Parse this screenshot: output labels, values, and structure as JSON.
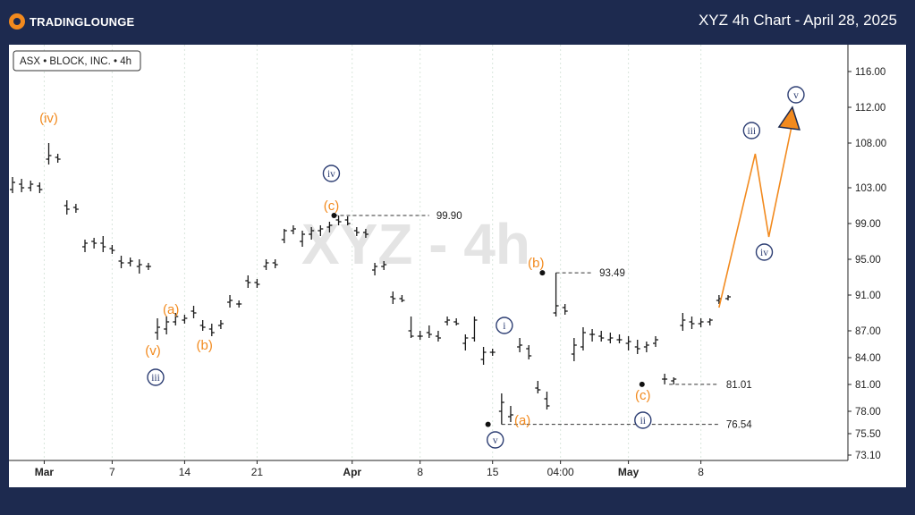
{
  "header": {
    "logo_text": "TRADINGLOUNGE",
    "chart_title": "XYZ 4h Chart - April 28, 2025"
  },
  "symbol_label": "ASX • BLOCK, INC. • 4h",
  "watermark": "XYZ - 4h",
  "colors": {
    "background": "#1d2a4f",
    "orange": "#f28a1e",
    "navy": "#2d3e73",
    "bars": "#1a1a1a",
    "grid": "#d9e6dc"
  },
  "chart_data": {
    "type": "ohlc",
    "title": "XYZ 4h Chart - April 28, 2025",
    "y_axis": {
      "ticks": [
        116.0,
        112.0,
        108.0,
        103.0,
        99.0,
        95.0,
        91.0,
        87.0,
        84.0,
        81.0,
        78.0,
        75.5,
        73.1
      ],
      "tick_labels": [
        "116.00",
        "112.00",
        "108.00",
        "103.00",
        "99.00",
        "95.00",
        "91.00",
        "87.00",
        "84.00",
        "81.00",
        "78.00",
        "75.50",
        "73.10"
      ],
      "range": [
        72.5,
        119
      ]
    },
    "x_axis": {
      "tick_labels": [
        "Mar",
        "7",
        "14",
        "21",
        "Apr",
        "8",
        "15",
        "04:00",
        "May",
        "8"
      ],
      "bold_labels": [
        "Mar",
        "Apr",
        "May"
      ],
      "tick_bars": [
        3.5,
        11,
        19,
        27,
        37.5,
        45,
        53,
        60.5,
        68,
        76
      ],
      "range": [
        0,
        79
      ]
    },
    "ohlc": [
      [
        102.8,
        104.2,
        102.4,
        103.6
      ],
      [
        103.4,
        104.0,
        102.5,
        103.0
      ],
      [
        103.0,
        103.8,
        102.6,
        103.4
      ],
      [
        103.2,
        103.6,
        102.4,
        102.8
      ],
      [
        106.2,
        108.0,
        105.6,
        106.6
      ],
      [
        106.4,
        106.8,
        105.8,
        106.2
      ],
      [
        101.0,
        101.6,
        100.0,
        100.6
      ],
      [
        100.8,
        101.2,
        100.2,
        100.6
      ],
      [
        96.4,
        97.2,
        95.8,
        96.8
      ],
      [
        97.0,
        97.4,
        96.2,
        96.8
      ],
      [
        96.8,
        97.6,
        95.8,
        96.4
      ],
      [
        96.2,
        96.6,
        95.6,
        96.0
      ],
      [
        94.8,
        95.4,
        94.0,
        94.6
      ],
      [
        94.6,
        95.2,
        94.2,
        94.8
      ],
      [
        94.2,
        95.0,
        93.4,
        94.4
      ],
      [
        94.2,
        94.6,
        93.8,
        94.2
      ],
      [
        86.8,
        88.4,
        86.0,
        87.4
      ],
      [
        87.2,
        88.6,
        86.6,
        88.0
      ],
      [
        88.0,
        89.0,
        87.6,
        88.6
      ],
      [
        88.2,
        88.8,
        87.8,
        88.4
      ],
      [
        89.2,
        89.8,
        88.4,
        89.0
      ],
      [
        87.6,
        88.2,
        87.0,
        87.4
      ],
      [
        87.2,
        87.8,
        86.4,
        86.8
      ],
      [
        87.6,
        88.2,
        87.2,
        87.8
      ],
      [
        90.2,
        91.0,
        89.6,
        90.4
      ],
      [
        90.0,
        90.4,
        89.6,
        90.0
      ],
      [
        92.6,
        93.2,
        91.8,
        92.4
      ],
      [
        92.4,
        92.8,
        91.8,
        92.2
      ],
      [
        94.2,
        95.0,
        93.8,
        94.6
      ],
      [
        94.6,
        95.0,
        94.0,
        94.4
      ],
      [
        97.2,
        98.4,
        96.8,
        98.2
      ],
      [
        98.2,
        98.8,
        97.8,
        98.4
      ],
      [
        97.0,
        98.2,
        96.4,
        97.8
      ],
      [
        97.8,
        98.6,
        97.2,
        98.2
      ],
      [
        98.2,
        98.8,
        97.6,
        98.4
      ],
      [
        98.6,
        99.2,
        98.0,
        98.8
      ],
      [
        99.4,
        99.9,
        98.8,
        99.2
      ],
      [
        99.4,
        99.8,
        98.8,
        99.0
      ],
      [
        98.2,
        98.6,
        97.6,
        98.0
      ],
      [
        98.0,
        98.4,
        97.4,
        97.8
      ],
      [
        93.8,
        94.6,
        93.2,
        94.2
      ],
      [
        94.2,
        94.8,
        93.8,
        94.4
      ],
      [
        90.8,
        91.4,
        90.0,
        90.6
      ],
      [
        90.6,
        91.0,
        90.2,
        90.4
      ],
      [
        87.0,
        88.6,
        86.2,
        86.4
      ],
      [
        86.4,
        87.0,
        86.0,
        86.4
      ],
      [
        86.8,
        87.6,
        86.2,
        86.6
      ],
      [
        86.4,
        87.0,
        85.8,
        86.2
      ],
      [
        88.0,
        88.6,
        87.6,
        88.2
      ],
      [
        88.0,
        88.4,
        87.6,
        87.8
      ],
      [
        85.6,
        86.6,
        84.8,
        86.2
      ],
      [
        86.2,
        88.6,
        85.8,
        88.2
      ],
      [
        83.8,
        85.2,
        83.2,
        84.6
      ],
      [
        84.6,
        85.0,
        84.2,
        84.6
      ],
      [
        78.0,
        80.0,
        76.54,
        79.0
      ],
      [
        77.4,
        78.6,
        76.8,
        77.6
      ],
      [
        85.2,
        86.2,
        84.6,
        85.4
      ],
      [
        85.0,
        85.4,
        83.8,
        84.2
      ],
      [
        80.6,
        81.4,
        80.0,
        80.4
      ],
      [
        79.4,
        80.2,
        78.2,
        78.6
      ],
      [
        89.0,
        93.49,
        88.6,
        89.8
      ],
      [
        89.6,
        90.0,
        88.8,
        89.2
      ],
      [
        84.4,
        86.2,
        83.6,
        85.4
      ],
      [
        85.2,
        87.4,
        84.8,
        86.8
      ],
      [
        86.6,
        87.2,
        85.8,
        86.6
      ],
      [
        86.4,
        87.0,
        85.8,
        86.2
      ],
      [
        86.0,
        86.8,
        85.6,
        86.2
      ],
      [
        86.0,
        86.6,
        85.6,
        86.0
      ],
      [
        85.6,
        86.4,
        84.8,
        85.8
      ],
      [
        85.2,
        86.0,
        84.4,
        85.0
      ],
      [
        85.2,
        85.8,
        84.6,
        85.4
      ],
      [
        85.6,
        86.4,
        85.2,
        86.0
      ],
      [
        81.6,
        82.2,
        81.01,
        81.6
      ],
      [
        81.4,
        81.8,
        81.0,
        81.6
      ],
      [
        87.6,
        89.0,
        87.0,
        88.2
      ],
      [
        88.0,
        88.6,
        87.2,
        87.8
      ],
      [
        87.8,
        88.4,
        87.4,
        88.0
      ],
      [
        88.0,
        88.4,
        87.6,
        88.2
      ],
      [
        90.4,
        91.0,
        90.0,
        90.6
      ],
      [
        90.6,
        91.0,
        90.4,
        90.8
      ]
    ],
    "levels": [
      {
        "label": "99.90",
        "value": 99.9,
        "from_bar": 35.5,
        "to_bar": 46
      },
      {
        "label": "93.49",
        "value": 93.49,
        "from_bar": 60.0,
        "to_bar": 64
      },
      {
        "label": "81.01",
        "value": 81.01,
        "from_bar": 72.5,
        "to_bar": 78
      },
      {
        "label": "76.54",
        "value": 76.54,
        "from_bar": 54.0,
        "to_bar": 78
      }
    ],
    "projection": [
      {
        "bar": 78,
        "value": 89.6
      },
      {
        "bar": 82,
        "value": 106.8
      },
      {
        "bar": 83.5,
        "value": 97.5
      },
      {
        "bar": 86,
        "value": 109.8
      }
    ],
    "annotations": [
      {
        "text": "(iv)",
        "bar": 4,
        "value": 110.8,
        "style": "orange"
      },
      {
        "text": "(a)",
        "bar": 17.5,
        "value": 89.4,
        "style": "orange"
      },
      {
        "text": "(v)",
        "bar": 15.5,
        "value": 84.8,
        "style": "orange"
      },
      {
        "text": "(b)",
        "bar": 21.2,
        "value": 85.4,
        "style": "orange"
      },
      {
        "text": "iii",
        "bar": 15.8,
        "value": 81.8,
        "style": "navy"
      },
      {
        "text": "(c)",
        "bar": 35.2,
        "value": 101.0,
        "style": "orange"
      },
      {
        "text": "iv",
        "bar": 35.2,
        "value": 104.6,
        "style": "navy"
      },
      {
        "text": "(b)",
        "bar": 57.8,
        "value": 94.6,
        "style": "orange"
      },
      {
        "text": "i",
        "bar": 54.3,
        "value": 87.6,
        "style": "navy"
      },
      {
        "text": "(a)",
        "bar": 56.3,
        "value": 77.0,
        "style": "orange"
      },
      {
        "text": "v",
        "bar": 53.3,
        "value": 74.8,
        "style": "navy"
      },
      {
        "text": "(c)",
        "bar": 69.6,
        "value": 79.8,
        "style": "orange"
      },
      {
        "text": "ii",
        "bar": 69.6,
        "value": 77.0,
        "style": "navy"
      },
      {
        "text": "iii",
        "bar": 81.6,
        "value": 109.4,
        "style": "navy"
      },
      {
        "text": "iv",
        "bar": 83.0,
        "value": 95.8,
        "style": "navy"
      },
      {
        "text": "v",
        "bar": 86.5,
        "value": 113.4,
        "style": "navy"
      }
    ],
    "pivot_dots": [
      {
        "bar": 35.5,
        "value": 99.9
      },
      {
        "bar": 58.5,
        "value": 93.49
      },
      {
        "bar": 52.5,
        "value": 76.54
      },
      {
        "bar": 69.5,
        "value": 81.01
      }
    ]
  }
}
